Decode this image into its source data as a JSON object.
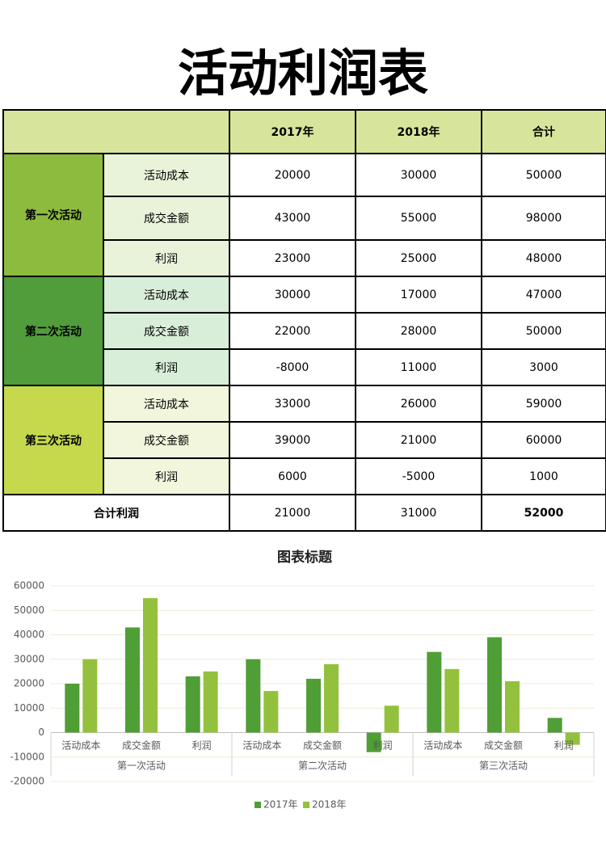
{
  "title": "活动利润表",
  "table": {
    "header": [
      "2017年",
      "2018年",
      "合计"
    ],
    "groups": [
      {
        "name": "第一次活动",
        "rows": [
          {
            "label": "活动成本",
            "values": [
              20000,
              30000,
              50000
            ]
          },
          {
            "label": "成交金额",
            "values": [
              43000,
              55000,
              98000
            ]
          },
          {
            "label": "利润",
            "values": [
              23000,
              25000,
              48000
            ]
          }
        ]
      },
      {
        "name": "第二次活动",
        "rows": [
          {
            "label": "活动成本",
            "values": [
              30000,
              17000,
              47000
            ]
          },
          {
            "label": "成交金额",
            "values": [
              22000,
              28000,
              50000
            ]
          },
          {
            "label": "利润",
            "values": [
              -8000,
              11000,
              3000
            ]
          }
        ]
      },
      {
        "name": "第三次活动",
        "rows": [
          {
            "label": "活动成本",
            "values": [
              33000,
              26000,
              59000
            ]
          },
          {
            "label": "成交金额",
            "values": [
              39000,
              21000,
              60000
            ]
          },
          {
            "label": "利润",
            "values": [
              6000,
              -5000,
              1000
            ]
          }
        ]
      }
    ],
    "total": {
      "label": "合计利润",
      "values": [
        21000,
        31000,
        52000
      ]
    }
  },
  "chart_data": {
    "type": "bar",
    "title": "图表标题",
    "categories": [
      "活动成本",
      "成交金额",
      "利润",
      "活动成本",
      "成交金额",
      "利润",
      "活动成本",
      "成交金额",
      "利润"
    ],
    "category_groups": [
      "第一次活动",
      "第二次活动",
      "第三次活动"
    ],
    "series": [
      {
        "name": "2017年",
        "color": "#4f9e36",
        "values": [
          20000,
          43000,
          23000,
          30000,
          22000,
          -8000,
          33000,
          39000,
          6000
        ]
      },
      {
        "name": "2018年",
        "color": "#93c13d",
        "values": [
          30000,
          55000,
          25000,
          17000,
          28000,
          11000,
          26000,
          21000,
          -5000
        ]
      }
    ],
    "ylim": [
      -20000,
      60000
    ],
    "yticks": [
      -20000,
      -10000,
      0,
      10000,
      20000,
      30000,
      40000,
      50000,
      60000
    ],
    "grid": true,
    "legend": "bottom"
  }
}
